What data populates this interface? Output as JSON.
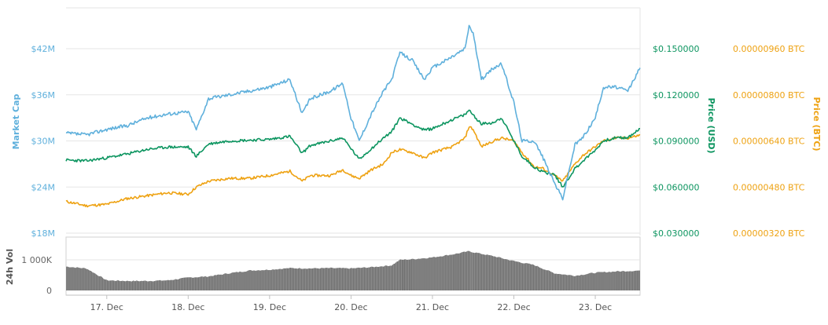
{
  "chart_data": {
    "type": "line",
    "colors": {
      "market_cap": "#5fb0dc",
      "price_usd": "#0d9560",
      "price_btc": "#eea212",
      "volume": "#6d6d6d",
      "grid": "#e6e6e6"
    },
    "x_dates": [
      "17. Dec",
      "18. Dec",
      "19. Dec",
      "20. Dec",
      "21. Dec",
      "22. Dec",
      "23. Dec"
    ],
    "x_range": [
      16.5,
      23.55
    ],
    "axes": {
      "market_cap": {
        "label": "Market Cap",
        "ticks": [
          "$18M",
          "$24M",
          "$30M",
          "$36M",
          "$42M"
        ],
        "range": [
          18,
          42
        ]
      },
      "price_usd": {
        "label": "Price (USD)",
        "ticks": [
          "$0.030000",
          "$0.060000",
          "$0.090000",
          "$0.120000",
          "$0.150000"
        ],
        "range": [
          0.03,
          0.15
        ]
      },
      "price_btc": {
        "label": "Price (BTC)",
        "ticks": [
          "0.00000320 BTC",
          "0.00000480 BTC",
          "0.00000640 BTC",
          "0.00000800 BTC",
          "0.00000960 BTC"
        ],
        "range": [
          3.2e-06,
          9.6e-06
        ]
      },
      "volume": {
        "label": "24h Vol",
        "ticks": [
          "0",
          "1 000K"
        ],
        "range": [
          0,
          1000000
        ]
      }
    },
    "grid": true,
    "legend": "none",
    "series": [
      {
        "key": "market_cap",
        "x": [
          16.5,
          16.75,
          17.0,
          17.25,
          17.5,
          17.75,
          18.0,
          18.1,
          18.25,
          18.5,
          18.75,
          19.0,
          19.25,
          19.4,
          19.5,
          19.75,
          19.9,
          20.0,
          20.1,
          20.25,
          20.4,
          20.5,
          20.6,
          20.75,
          20.9,
          21.0,
          21.25,
          21.4,
          21.45,
          21.5,
          21.6,
          21.75,
          21.85,
          22.0,
          22.1,
          22.25,
          22.35,
          22.5,
          22.6,
          22.75,
          22.85,
          23.0,
          23.1,
          23.25,
          23.4,
          23.55
        ],
        "values": [
          31.0,
          30.8,
          31.5,
          32.0,
          33.0,
          33.5,
          33.8,
          31.5,
          35.5,
          36.0,
          36.5,
          37.0,
          38.0,
          33.5,
          35.5,
          36.5,
          37.5,
          33.0,
          30.0,
          33.5,
          36.5,
          38.0,
          41.5,
          40.5,
          38.0,
          39.5,
          41.0,
          42.0,
          45.0,
          44.0,
          38.0,
          39.5,
          40.0,
          35.0,
          30.0,
          30.0,
          28.0,
          24.5,
          22.5,
          29.5,
          30.5,
          33.0,
          37.0,
          37.0,
          36.5,
          39.5
        ]
      },
      {
        "key": "price_usd",
        "x": [
          16.5,
          16.75,
          17.0,
          17.25,
          17.5,
          17.75,
          18.0,
          18.1,
          18.25,
          18.5,
          18.75,
          19.0,
          19.25,
          19.4,
          19.5,
          19.75,
          19.9,
          20.0,
          20.1,
          20.25,
          20.4,
          20.5,
          20.6,
          20.75,
          20.9,
          21.0,
          21.25,
          21.4,
          21.45,
          21.5,
          21.6,
          21.75,
          21.85,
          22.0,
          22.1,
          22.25,
          22.35,
          22.5,
          22.6,
          22.75,
          22.85,
          23.0,
          23.1,
          23.25,
          23.4,
          23.55
        ],
        "values": [
          0.0775,
          0.077,
          0.079,
          0.0815,
          0.0845,
          0.086,
          0.086,
          0.08,
          0.088,
          0.09,
          0.0905,
          0.091,
          0.093,
          0.082,
          0.087,
          0.09,
          0.092,
          0.085,
          0.078,
          0.085,
          0.092,
          0.096,
          0.105,
          0.101,
          0.097,
          0.098,
          0.104,
          0.107,
          0.11,
          0.107,
          0.101,
          0.102,
          0.105,
          0.09,
          0.08,
          0.073,
          0.07,
          0.068,
          0.06,
          0.072,
          0.077,
          0.084,
          0.09,
          0.092,
          0.092,
          0.098
        ]
      },
      {
        "key": "price_btc",
        "x": [
          16.5,
          16.75,
          17.0,
          17.25,
          17.5,
          17.75,
          18.0,
          18.1,
          18.25,
          18.5,
          18.75,
          19.0,
          19.25,
          19.4,
          19.5,
          19.75,
          19.9,
          20.0,
          20.1,
          20.25,
          20.4,
          20.5,
          20.6,
          20.75,
          20.9,
          21.0,
          21.25,
          21.4,
          21.45,
          21.5,
          21.6,
          21.75,
          21.85,
          22.0,
          22.1,
          22.25,
          22.35,
          22.5,
          22.6,
          22.75,
          22.85,
          23.0,
          23.1,
          23.25,
          23.4,
          23.55
        ],
        "values": [
          4.3e-06,
          4.15e-06,
          4.2e-06,
          4.4e-06,
          4.5e-06,
          4.6e-06,
          4.55e-06,
          4.8e-06,
          5e-06,
          5.1e-06,
          5.1e-06,
          5.2e-06,
          5.35e-06,
          5e-06,
          5.2e-06,
          5.2e-06,
          5.4e-06,
          5.2e-06,
          5.1e-06,
          5.4e-06,
          5.6e-06,
          6e-06,
          6.1e-06,
          6e-06,
          5.8e-06,
          6e-06,
          6.2e-06,
          6.5e-06,
          6.9e-06,
          6.8e-06,
          6.2e-06,
          6.4e-06,
          6.5e-06,
          6.4e-06,
          6e-06,
          5.5e-06,
          5.45e-06,
          5.2e-06,
          5e-06,
          5.6e-06,
          5.9e-06,
          6.2e-06,
          6.4e-06,
          6.5e-06,
          6.5e-06,
          6.6e-06
        ]
      },
      {
        "key": "volume",
        "x": [
          16.5,
          16.75,
          17.0,
          17.25,
          17.5,
          17.75,
          18.0,
          18.25,
          18.5,
          18.75,
          19.0,
          19.25,
          19.5,
          19.75,
          20.0,
          20.25,
          20.5,
          20.6,
          20.75,
          21.0,
          21.25,
          21.45,
          21.5,
          21.75,
          22.0,
          22.25,
          22.5,
          22.75,
          23.0,
          23.25,
          23.55
        ],
        "values": [
          780000,
          720000,
          330000,
          310000,
          310000,
          330000,
          420000,
          460000,
          560000,
          650000,
          680000,
          730000,
          720000,
          730000,
          720000,
          760000,
          820000,
          1000000,
          1020000,
          1080000,
          1180000,
          1280000,
          1250000,
          1120000,
          960000,
          830000,
          560000,
          480000,
          580000,
          620000,
          650000
        ]
      }
    ]
  }
}
